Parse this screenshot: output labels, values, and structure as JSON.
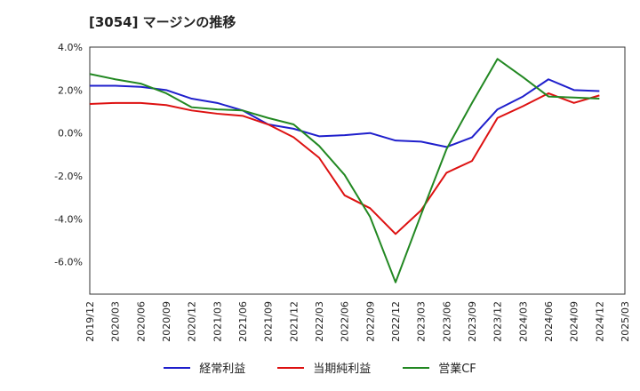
{
  "chart_data": {
    "type": "line",
    "title": "[3054]  マージンの推移",
    "x": [
      "2019/12",
      "2020/03",
      "2020/06",
      "2020/09",
      "2020/12",
      "2021/03",
      "2021/06",
      "2021/09",
      "2021/12",
      "2022/03",
      "2022/06",
      "2022/09",
      "2022/12",
      "2023/03",
      "2023/06",
      "2023/09",
      "2023/12",
      "2024/03",
      "2024/06",
      "2024/09",
      "2024/12",
      "2025/03"
    ],
    "ylim": [
      -7.5,
      4.0
    ],
    "yticks": [
      4.0,
      2.0,
      0.0,
      -2.0,
      -4.0,
      -6.0
    ],
    "ytick_labels": [
      "4.0%",
      "2.0%",
      "0.0%",
      "-2.0%",
      "-4.0%",
      "-6.0%"
    ],
    "grid": true,
    "legend_position": "bottom",
    "series": [
      {
        "name": "経常利益",
        "color": "#1f1fcc",
        "values": [
          2.2,
          2.2,
          2.15,
          2.0,
          1.6,
          1.4,
          1.05,
          0.4,
          0.2,
          -0.15,
          -0.1,
          0.0,
          -0.35,
          -0.4,
          -0.65,
          -0.2,
          1.1,
          1.7,
          2.5,
          2.0,
          1.95,
          null
        ]
      },
      {
        "name": "当期純利益",
        "color": "#dd1111",
        "values": [
          1.35,
          1.4,
          1.4,
          1.3,
          1.05,
          0.9,
          0.8,
          0.4,
          -0.2,
          -1.15,
          -2.9,
          -3.5,
          -4.7,
          -3.6,
          -1.85,
          -1.3,
          0.7,
          1.25,
          1.85,
          1.4,
          1.75,
          null
        ]
      },
      {
        "name": "営業CF",
        "color": "#228822",
        "values": [
          2.75,
          2.5,
          2.3,
          1.85,
          1.2,
          1.1,
          1.05,
          0.7,
          0.4,
          -0.6,
          -1.95,
          -3.9,
          -6.95,
          -3.8,
          -0.75,
          1.4,
          3.45,
          2.6,
          1.7,
          1.65,
          1.6,
          null
        ]
      }
    ]
  }
}
